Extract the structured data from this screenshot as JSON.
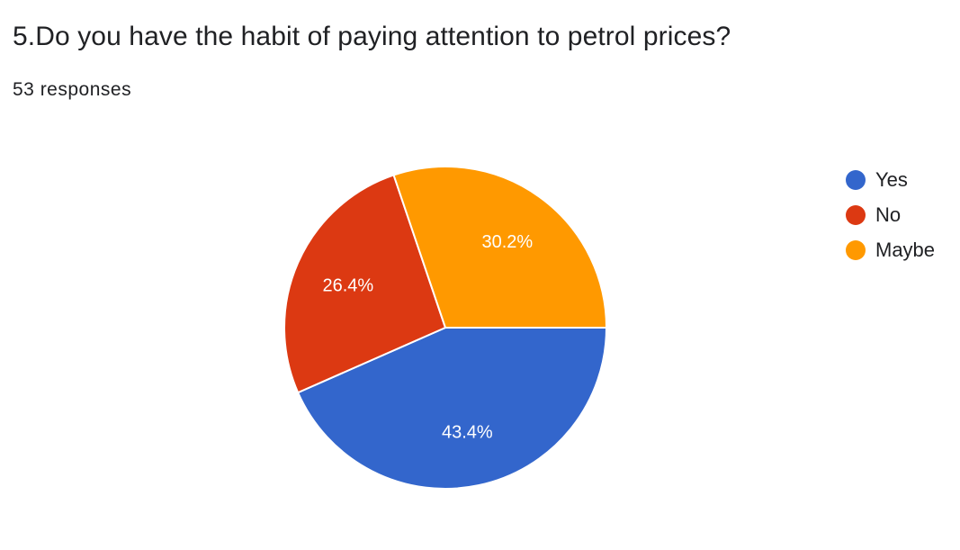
{
  "question": {
    "title": "5.Do you have the habit of paying attention to petrol prices?",
    "responses": "53 responses"
  },
  "chart_data": {
    "type": "pie",
    "title": "5.Do you have the habit of paying attention to petrol prices?",
    "total_responses": 53,
    "slices": [
      {
        "label": "Yes",
        "value": 43.4,
        "display": "43.4%",
        "color": "#3366cc"
      },
      {
        "label": "No",
        "value": 26.4,
        "display": "26.4%",
        "color": "#dc3912"
      },
      {
        "label": "Maybe",
        "value": 30.2,
        "display": "30.2%",
        "color": "#ff9900"
      }
    ],
    "legend_position": "right"
  }
}
